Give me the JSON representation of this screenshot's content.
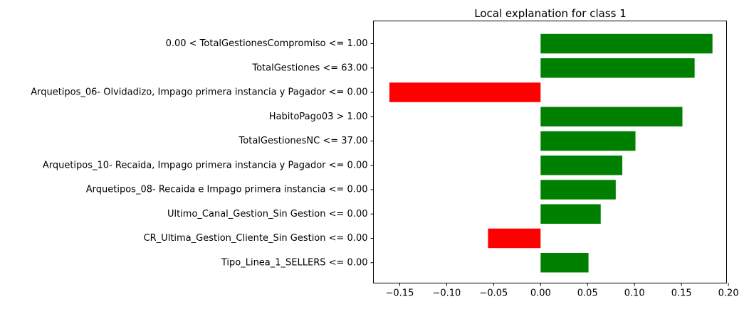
{
  "chart_data": {
    "type": "bar",
    "orientation": "horizontal",
    "title": "Local explanation for class 1",
    "xlabel": "",
    "ylabel": "",
    "xlim": [
      -0.178,
      0.198
    ],
    "xticks": [
      -0.15,
      -0.1,
      -0.05,
      0.0,
      0.05,
      0.1,
      0.15,
      0.2
    ],
    "xtick_labels": [
      "−0.15",
      "−0.10",
      "−0.05",
      "0.00",
      "0.05",
      "0.10",
      "0.15",
      "0.20"
    ],
    "grid": false,
    "categories": [
      "0.00 < TotalGestionesCompromiso <= 1.00",
      "TotalGestiones <= 63.00",
      "Arquetipos_06- Olvidadizo, Impago primera instancia y Pagador <= 0.00",
      "HabitoPago03 > 1.00",
      "TotalGestionesNC <= 37.00",
      "Arquetipos_10- Recaida, Impago primera instancia y Pagador <= 0.00",
      "Arquetipos_08- Recaida e Impago primera instancia <= 0.00",
      "Ultimo_Canal_Gestion_Sin Gestion <= 0.00",
      "CR_Ultima_Gestion_Cliente_Sin Gestion <= 0.00",
      "Tipo_Linea_1_SELLERS <= 0.00"
    ],
    "values": [
      0.183,
      0.164,
      -0.161,
      0.151,
      0.101,
      0.087,
      0.08,
      0.064,
      -0.056,
      0.051
    ],
    "colors": {
      "positive": "#008000",
      "negative": "#ff0000",
      "axis": "#000000",
      "background": "#ffffff"
    }
  }
}
